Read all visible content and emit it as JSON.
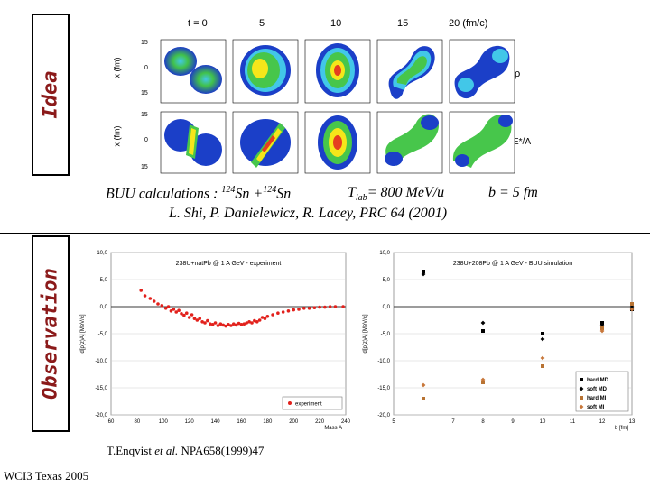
{
  "idea": {
    "label": "Idea",
    "sim_headers": [
      "t = 0",
      "5",
      "10",
      "15",
      "20 (fm/c)"
    ],
    "row_labels": [
      "ρ",
      "E*/A"
    ],
    "axis_label": "x (fm)",
    "tick_labels": [
      "15",
      "0",
      "15",
      "15",
      "0",
      "15"
    ],
    "caption_main": "BUU calculations : ",
    "caption_sup1": "124",
    "caption_sn1": "Sn +",
    "caption_sup2": "124",
    "caption_sn2": "Sn",
    "caption_tlab": "T",
    "caption_tlab_sub": "lab",
    "caption_tlab_val": "= 800 MeV/u",
    "caption_b": "b = 5 fm",
    "reference": "L. Shi, P. Danielewicz, R. Lacey, PRC 64 (2001)"
  },
  "observation": {
    "label": "Observation",
    "citation_author": "T.Enqvist ",
    "citation_etal": "et al.",
    "citation_rest": " NPA658(1999)47"
  },
  "footer": "WCI3 Texas 2005",
  "chart_data": [
    {
      "type": "scatter",
      "title": "238U+natPb @ 1 A GeV - experiment",
      "xlabel": "Mass A",
      "ylabel": "d[p(z)A] [MeV/c]",
      "xlim": [
        60,
        240
      ],
      "ylim": [
        -20,
        10
      ],
      "xticks": [
        "60",
        "80",
        "100",
        "120",
        "140",
        "160",
        "180",
        "200",
        "220",
        "240"
      ],
      "yticks": [
        "10,0",
        "5,0",
        "0,0",
        "-5,0",
        "-10,0",
        "-15,0",
        "-20,0"
      ],
      "legend": [
        "experiment"
      ],
      "series": [
        {
          "name": "experiment",
          "color": "#e2211c",
          "x": [
            83,
            86,
            90,
            93,
            96,
            99,
            102,
            104,
            106,
            108,
            110,
            112,
            114,
            116,
            118,
            120,
            122,
            124,
            126,
            128,
            130,
            132,
            134,
            136,
            138,
            140,
            142,
            144,
            146,
            148,
            150,
            152,
            154,
            156,
            158,
            160,
            162,
            164,
            166,
            168,
            170,
            172,
            174,
            176,
            178,
            180,
            184,
            188,
            192,
            196,
            200,
            204,
            208,
            212,
            216,
            220,
            224,
            228,
            232,
            238
          ],
          "y": [
            3.0,
            2.0,
            1.5,
            1.0,
            0.5,
            0.2,
            -0.3,
            0.0,
            -0.8,
            -0.5,
            -1.0,
            -0.7,
            -1.3,
            -1.6,
            -1.2,
            -2.0,
            -1.5,
            -2.2,
            -2.5,
            -2.2,
            -2.8,
            -3.0,
            -2.6,
            -3.2,
            -3.3,
            -3.0,
            -3.5,
            -3.2,
            -3.4,
            -3.6,
            -3.3,
            -3.5,
            -3.2,
            -3.4,
            -3.1,
            -3.3,
            -3.2,
            -3.0,
            -2.8,
            -3.0,
            -2.6,
            -2.8,
            -2.5,
            -2.0,
            -2.2,
            -1.8,
            -1.5,
            -1.2,
            -1.0,
            -0.8,
            -0.6,
            -0.5,
            -0.3,
            -0.3,
            -0.2,
            -0.1,
            -0.1,
            0.0,
            0.0,
            0.0
          ]
        }
      ]
    },
    {
      "type": "scatter",
      "title": "238U+208Pb @ 1 A GeV - BUU simulation",
      "xlabel": "b [fm]",
      "ylabel": "d[p(z)A] [MeV/c]",
      "xlim": [
        5,
        13
      ],
      "ylim": [
        -20,
        10
      ],
      "xticks": [
        "5",
        "7",
        "9",
        "11",
        "13"
      ],
      "yticks": [
        "10,0",
        "5,0",
        "0,0",
        "-5,0",
        "-10,0",
        "-15,0",
        "-20,0"
      ],
      "extra_xticks": [
        "8",
        "10",
        "12"
      ],
      "legend": [
        "hard MD",
        "soft MD",
        "hard MI",
        "soft MI"
      ],
      "series": [
        {
          "name": "hard MD",
          "color": "#000000",
          "marker": "square",
          "x": [
            6,
            8,
            10,
            12,
            13
          ],
          "y": [
            6.5,
            -4.5,
            -5.0,
            -3.0,
            -0.5
          ]
        },
        {
          "name": "soft MD",
          "color": "#000000",
          "marker": "diamond",
          "x": [
            6,
            8,
            10,
            12,
            13
          ],
          "y": [
            6.0,
            -3.0,
            -6.0,
            -3.5,
            0.0
          ]
        },
        {
          "name": "hard MI",
          "color": "#b87333",
          "marker": "square",
          "x": [
            6,
            8,
            10,
            12,
            13
          ],
          "y": [
            -17.0,
            -14.0,
            -11.0,
            -4.0,
            0.5
          ]
        },
        {
          "name": "soft MI",
          "color": "#c8773a",
          "marker": "diamond",
          "x": [
            6,
            8,
            10,
            12,
            13
          ],
          "y": [
            -14.5,
            -13.5,
            -9.5,
            -4.5,
            -0.5
          ]
        }
      ]
    }
  ]
}
